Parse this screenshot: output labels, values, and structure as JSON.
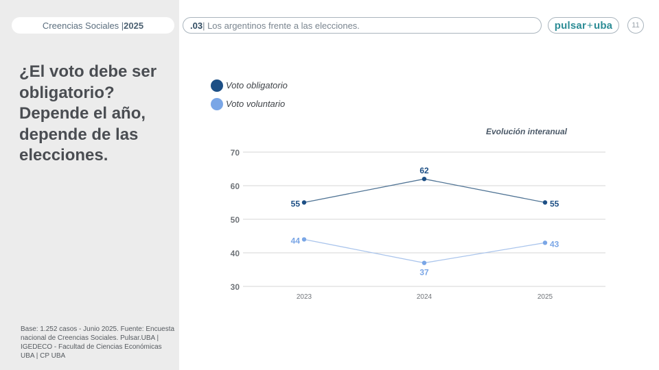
{
  "header": {
    "brand_label": "Creencias Sociales | ",
    "brand_year": "2025",
    "section_number": ".03",
    "section_title": "| Los argentinos frente a las elecciones.",
    "logo_left": "pulsar",
    "logo_sep": "+",
    "logo_right": "uba",
    "page_number": "11"
  },
  "sidebar": {
    "heading": "¿El voto debe ser obligatorio? Depende el año, depende de las elecciones.",
    "source": "Base: 1.252 casos - Junio 2025. Fuente: Encuesta nacional de Creencias Sociales. Pulsar.UBA | IGEDECO - Facultad de Ciencias Económicas UBA | CP UBA"
  },
  "colors": {
    "series_dark": "#1d4f85",
    "series_dark_line": "#4f7394",
    "series_light": "#7aa6e6",
    "series_light_line": "#a9c4ec",
    "grid": "#d6d6d6"
  },
  "chart_data": {
    "type": "line",
    "title": "",
    "subtitle": "Evolución interanual",
    "xlabel": "",
    "ylabel": "",
    "categories": [
      "2023",
      "2024",
      "2025"
    ],
    "ylim": [
      30,
      70
    ],
    "yticks": [
      30,
      40,
      50,
      60,
      70
    ],
    "grid": true,
    "legend_position": "top-left",
    "series": [
      {
        "name": "Voto obligatorio",
        "values": [
          55,
          62,
          55
        ]
      },
      {
        "name": "Voto voluntario",
        "values": [
          44,
          37,
          43
        ]
      }
    ]
  }
}
